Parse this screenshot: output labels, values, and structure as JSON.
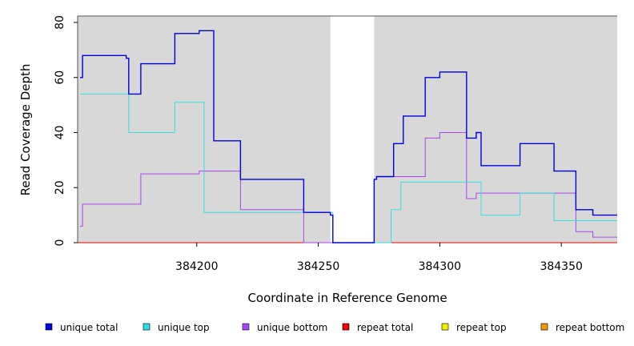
{
  "chart_data": {
    "type": "line",
    "title": "",
    "xlabel": "Coordinate in Reference Genome",
    "ylabel": "Read Coverage Depth",
    "xlim": [
      384151,
      384373
    ],
    "ylim": [
      0,
      82
    ],
    "xticks": [
      384200,
      384250,
      384300,
      384350
    ],
    "yticks": [
      0,
      20,
      40,
      60,
      80
    ],
    "shaded_regions": [
      [
        384151,
        384255
      ],
      [
        384273,
        384373
      ]
    ],
    "shade_color": "#d8d8d8",
    "grid": false,
    "legend_position": "bottom",
    "series": [
      {
        "name": "unique total",
        "color": "#0000dd",
        "steps": [
          [
            384152,
            60
          ],
          [
            384153,
            68
          ],
          [
            384171,
            67
          ],
          [
            384172,
            54
          ],
          [
            384177,
            65
          ],
          [
            384191,
            76
          ],
          [
            384201,
            77
          ],
          [
            384207,
            37
          ],
          [
            384218,
            23
          ],
          [
            384244,
            11
          ],
          [
            384255,
            10
          ],
          [
            384256,
            0
          ],
          [
            384273,
            23
          ],
          [
            384274,
            24
          ],
          [
            384281,
            36
          ],
          [
            384285,
            46
          ],
          [
            384294,
            60
          ],
          [
            384300,
            62
          ],
          [
            384311,
            38
          ],
          [
            384315,
            40
          ],
          [
            384317,
            28
          ],
          [
            384333,
            36
          ],
          [
            384347,
            26
          ],
          [
            384356,
            12
          ],
          [
            384363,
            10
          ],
          [
            384373,
            10
          ]
        ]
      },
      {
        "name": "unique top",
        "color": "#33dddd",
        "steps": [
          [
            384152,
            54
          ],
          [
            384172,
            40
          ],
          [
            384191,
            51
          ],
          [
            384203,
            11
          ],
          [
            384244,
            11
          ],
          [
            384256,
            0
          ],
          [
            384280,
            12
          ],
          [
            384284,
            22
          ],
          [
            384317,
            10
          ],
          [
            384333,
            18
          ],
          [
            384347,
            8
          ],
          [
            384373,
            8
          ]
        ]
      },
      {
        "name": "unique bottom",
        "color": "#aa44ee",
        "steps": [
          [
            384152,
            6
          ],
          [
            384153,
            14
          ],
          [
            384177,
            25
          ],
          [
            384191,
            25
          ],
          [
            384201,
            26
          ],
          [
            384218,
            12
          ],
          [
            384244,
            0
          ],
          [
            384273,
            23
          ],
          [
            384274,
            24
          ],
          [
            384294,
            38
          ],
          [
            384300,
            40
          ],
          [
            384311,
            16
          ],
          [
            384315,
            18
          ],
          [
            384356,
            4
          ],
          [
            384363,
            2
          ],
          [
            384373,
            2
          ]
        ]
      },
      {
        "name": "repeat total",
        "color": "#ee0000",
        "steps": [
          [
            384151,
            0
          ],
          [
            384373,
            0
          ]
        ]
      },
      {
        "name": "repeat top",
        "color": "#eeee00",
        "steps": [
          [
            384151,
            0
          ],
          [
            384373,
            0
          ]
        ]
      },
      {
        "name": "repeat bottom",
        "color": "#ee9900",
        "steps": [
          [
            384151,
            0
          ],
          [
            384373,
            0
          ]
        ]
      }
    ]
  }
}
